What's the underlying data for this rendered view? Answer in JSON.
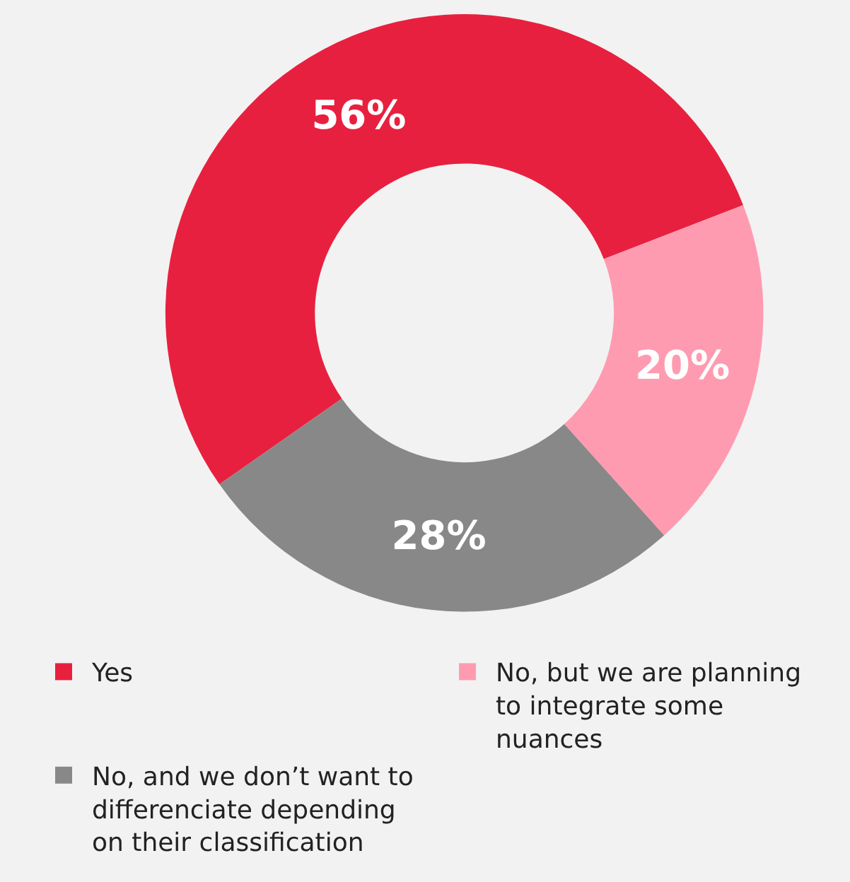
{
  "chart_data": {
    "type": "donut",
    "categories": [
      "Yes",
      "No, but we are planning to integrate some nuances",
      "No, and we don’t want to differenciate depending on their classification"
    ],
    "values": [
      56,
      20,
      28
    ],
    "colors": [
      "#e8203f",
      "#ff9bb0",
      "#888888"
    ],
    "value_labels": [
      "56%",
      "20%",
      "28%"
    ],
    "legend": "bottom"
  }
}
